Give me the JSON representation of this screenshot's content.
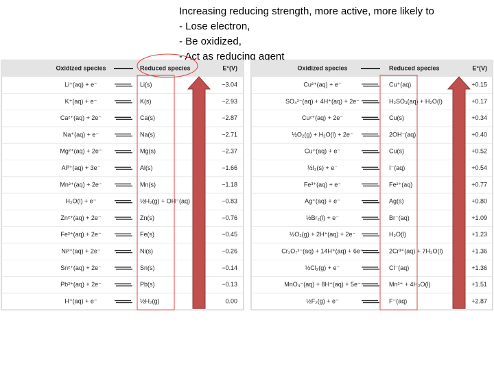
{
  "heading": [
    "Increasing reducing strength, more active, more likely to",
    "-   Lose electron,",
    "-   Be oxidized,",
    "-   Act as reducing agent"
  ],
  "tables": [
    {
      "header": [
        "Oxidized species",
        "Reduced species",
        "E°(V)"
      ],
      "rows": [
        [
          "Li⁺(aq) + e⁻",
          "Li(s)",
          "−3.04"
        ],
        [
          "K⁺(aq) + e⁻",
          "K(s)",
          "−2.93"
        ],
        [
          "Ca²⁺(aq) + 2e⁻",
          "Ca(s)",
          "−2.87"
        ],
        [
          "Na⁺(aq) + e⁻",
          "Na(s)",
          "−2.71"
        ],
        [
          "Mg²⁺(aq) + 2e⁻",
          "Mg(s)",
          "−2.37"
        ],
        [
          "Al³⁺(aq) + 3e⁻",
          "Al(s)",
          "−1.66"
        ],
        [
          "Mn²⁺(aq) + 2e⁻",
          "Mn(s)",
          "−1.18"
        ],
        [
          "H₂O(l) + e⁻",
          "½H₂(g) + OH⁻(aq)",
          "−0.83"
        ],
        [
          "Zn²⁺(aq) + 2e⁻",
          "Zn(s)",
          "−0.76"
        ],
        [
          "Fe²⁺(aq) + 2e⁻",
          "Fe(s)",
          "−0.45"
        ],
        [
          "Ni²⁺(aq) + 2e⁻",
          "Ni(s)",
          "−0.26"
        ],
        [
          "Sn²⁺(aq) + 2e⁻",
          "Sn(s)",
          "−0.14"
        ],
        [
          "Pb²⁺(aq) + 2e⁻",
          "Pb(s)",
          "−0.13"
        ],
        [
          "H⁺(aq) + e⁻",
          "½H₂(g)",
          "0.00"
        ]
      ]
    },
    {
      "header": [
        "Oxidized species",
        "Reduced species",
        "E°(V)"
      ],
      "rows": [
        [
          "Cu²⁺(aq) + e⁻",
          "Cu⁺(aq)",
          "+0.15"
        ],
        [
          "SO₄²⁻(aq) + 4H⁺(aq) + 2e⁻",
          "H₂SO₃(aq) + H₂O(l)",
          "+0.17"
        ],
        [
          "Cu²⁺(aq) + 2e⁻",
          "Cu(s)",
          "+0.34"
        ],
        [
          "½O₂(g) + H₂O(l) + 2e⁻",
          "2OH⁻(aq)",
          "+0.40"
        ],
        [
          "Cu⁺(aq) + e⁻",
          "Cu(s)",
          "+0.52"
        ],
        [
          "½I₂(s) + e⁻",
          "I⁻(aq)",
          "+0.54"
        ],
        [
          "Fe³⁺(aq) + e⁻",
          "Fe²⁺(aq)",
          "+0.77"
        ],
        [
          "Ag⁺(aq) + e⁻",
          "Ag(s)",
          "+0.80"
        ],
        [
          "½Br₂(l) + e⁻",
          "Br⁻(aq)",
          "+1.09"
        ],
        [
          "½O₂(g) + 2H⁺(aq) + 2e⁻",
          "H₂O(l)",
          "+1.23"
        ],
        [
          "Cr₂O₇²⁻(aq) + 14H⁺(aq) + 6e⁻",
          "2Cr³⁺(aq) + 7H₂O(l)",
          "+1.36"
        ],
        [
          "½Cl₂(g) + e⁻",
          "Cl⁻(aq)",
          "+1.36"
        ],
        [
          "MnO₄⁻(aq) + 8H⁺(aq) + 5e⁻",
          "Mn²⁺ + 4H₂O(l)",
          "+1.51"
        ],
        [
          "½F₂(g) + e⁻",
          "F⁻(aq)",
          "+2.87"
        ]
      ]
    }
  ]
}
